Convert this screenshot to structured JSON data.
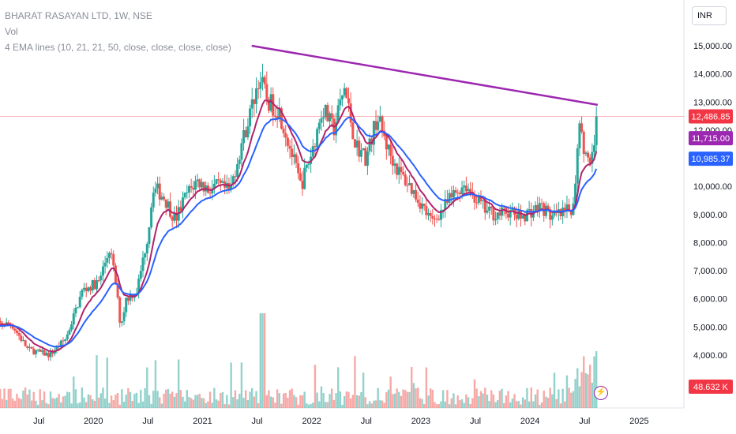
{
  "legend": {
    "symbol": "BHARAT RASAYAN LTD, 1W, NSE",
    "volume": "Vol",
    "ema": "4 EMA lines (10, 21, 21, 50, close, close, close, close)"
  },
  "currency": "INR",
  "colors": {
    "up": "#26a69a",
    "down": "#ef5350",
    "ema_fast": "#b0246a",
    "ema_slow": "#2962ff",
    "trendline": "#9c27b0",
    "last_price_tag": "#f23645",
    "ema_tag_purple": "#9c27b0",
    "ema_tag_blue": "#2962ff"
  },
  "icons": {
    "flash": "lightning-icon"
  },
  "chart_data": {
    "type": "candlestick",
    "title": "BHARAT RASAYAN LTD, 1W, NSE",
    "x_tick_labels": [
      "Jul",
      "2020",
      "Jul",
      "2021",
      "Jul",
      "2022",
      "Jul",
      "2023",
      "Jul",
      "2024",
      "Jul",
      "2025"
    ],
    "y_tick_labels": [
      "4,000.00",
      "5,000.00",
      "6,000.00",
      "7,000.00",
      "8,000.00",
      "9,000.00",
      "10,000.00",
      "11,000.00",
      "12,000.00",
      "13,000.00",
      "14,000.00",
      "15,000.00"
    ],
    "y_ticks": [
      4000,
      5000,
      6000,
      7000,
      8000,
      9000,
      10000,
      11000,
      12000,
      13000,
      14000,
      15000
    ],
    "ylim": [
      3200,
      15600
    ],
    "x_range": [
      "2019-04",
      "2025-07"
    ],
    "price_series": [
      {
        "t": 2019.25,
        "v": 5100
      },
      {
        "t": 2019.4,
        "v": 4200
      },
      {
        "t": 2019.6,
        "v": 4000
      },
      {
        "t": 2019.75,
        "v": 4600
      },
      {
        "t": 2019.9,
        "v": 6300
      },
      {
        "t": 2020.05,
        "v": 6600
      },
      {
        "t": 2020.15,
        "v": 7800
      },
      {
        "t": 2020.2,
        "v": 6700
      },
      {
        "t": 2020.25,
        "v": 5000
      },
      {
        "t": 2020.3,
        "v": 6000
      },
      {
        "t": 2020.4,
        "v": 6300
      },
      {
        "t": 2020.5,
        "v": 8300
      },
      {
        "t": 2020.55,
        "v": 10000
      },
      {
        "t": 2020.65,
        "v": 9600
      },
      {
        "t": 2020.75,
        "v": 8800
      },
      {
        "t": 2020.85,
        "v": 9700
      },
      {
        "t": 2020.95,
        "v": 10200
      },
      {
        "t": 2021.05,
        "v": 9900
      },
      {
        "t": 2021.15,
        "v": 10000
      },
      {
        "t": 2021.25,
        "v": 9800
      },
      {
        "t": 2021.35,
        "v": 11400
      },
      {
        "t": 2021.45,
        "v": 12800
      },
      {
        "t": 2021.52,
        "v": 13900
      },
      {
        "t": 2021.6,
        "v": 13000
      },
      {
        "t": 2021.7,
        "v": 12700
      },
      {
        "t": 2021.8,
        "v": 11400
      },
      {
        "t": 2021.9,
        "v": 10000
      },
      {
        "t": 2022.0,
        "v": 11200
      },
      {
        "t": 2022.1,
        "v": 12800
      },
      {
        "t": 2022.2,
        "v": 12000
      },
      {
        "t": 2022.3,
        "v": 13500
      },
      {
        "t": 2022.4,
        "v": 11500
      },
      {
        "t": 2022.5,
        "v": 11000
      },
      {
        "t": 2022.6,
        "v": 12500
      },
      {
        "t": 2022.7,
        "v": 11300
      },
      {
        "t": 2022.8,
        "v": 10500
      },
      {
        "t": 2022.9,
        "v": 10000
      },
      {
        "t": 2023.0,
        "v": 9400
      },
      {
        "t": 2023.1,
        "v": 8700
      },
      {
        "t": 2023.2,
        "v": 9200
      },
      {
        "t": 2023.3,
        "v": 9700
      },
      {
        "t": 2023.4,
        "v": 10100
      },
      {
        "t": 2023.5,
        "v": 9600
      },
      {
        "t": 2023.6,
        "v": 9100
      },
      {
        "t": 2023.7,
        "v": 9000
      },
      {
        "t": 2023.8,
        "v": 9100
      },
      {
        "t": 2023.9,
        "v": 8900
      },
      {
        "t": 2024.0,
        "v": 9100
      },
      {
        "t": 2024.1,
        "v": 9300
      },
      {
        "t": 2024.2,
        "v": 8900
      },
      {
        "t": 2024.3,
        "v": 9000
      },
      {
        "t": 2024.4,
        "v": 9300
      },
      {
        "t": 2024.45,
        "v": 12500
      },
      {
        "t": 2024.5,
        "v": 11200
      },
      {
        "t": 2024.55,
        "v": 10600
      },
      {
        "t": 2024.62,
        "v": 12486.85
      }
    ],
    "series": [
      {
        "name": "EMA 10/21",
        "color": "#b0246a",
        "last": 11715.0
      },
      {
        "name": "EMA 21/50",
        "color": "#2962ff",
        "last": 10985.37
      }
    ],
    "trendline": {
      "from": {
        "t": 2021.45,
        "v": 15000
      },
      "to": {
        "t": 2024.62,
        "v": 12900
      }
    },
    "last_price": 12486.85,
    "last_price_label": "12,486.85",
    "ema_purple_label": "11,715.00",
    "ema_blue_label": "10,985.37",
    "volume_label": "48.632 K",
    "volume_last": 48632
  }
}
